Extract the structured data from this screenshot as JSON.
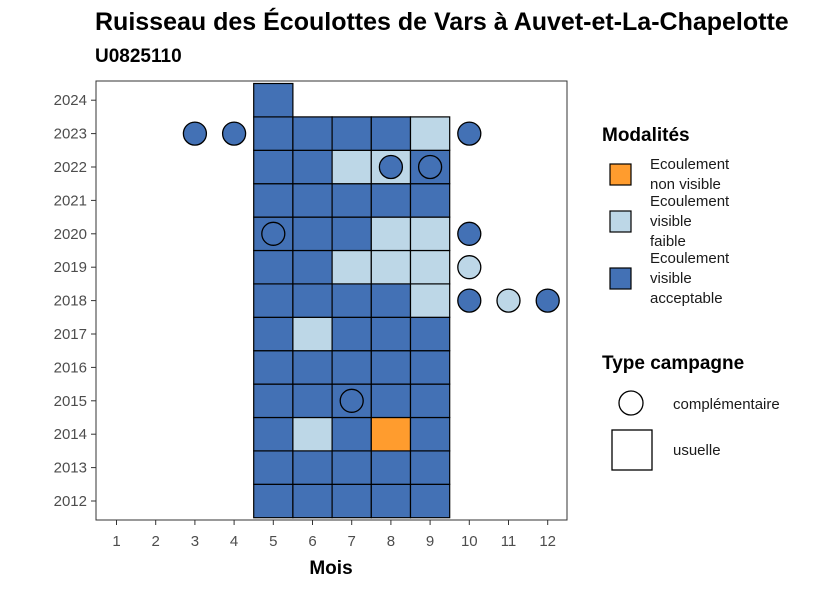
{
  "chart_data": {
    "type": "heatmap",
    "title": "Ruisseau des Écoulottes de Vars à Auvet-et-La-Chapelotte",
    "subtitle": "U0825110",
    "xlabel": "Mois",
    "ylabel": "",
    "x_ticks": [
      1,
      2,
      3,
      4,
      5,
      6,
      7,
      8,
      9,
      10,
      11,
      12
    ],
    "y_ticks": [
      2012,
      2013,
      2014,
      2015,
      2016,
      2017,
      2018,
      2019,
      2020,
      2021,
      2022,
      2023,
      2024
    ],
    "xlim": [
      0.5,
      12.5
    ],
    "ylim": [
      2011.45,
      2024.6
    ],
    "colors": {
      "non_visible": "#ff9c2e",
      "faible": "#bdd7e7",
      "acceptable": "#4371b5"
    },
    "legend": {
      "modalites_title": "Modalités",
      "modalites": [
        {
          "key": "non_visible",
          "lines": [
            "Ecoulement",
            "non visible"
          ]
        },
        {
          "key": "faible",
          "lines": [
            "Ecoulement",
            "visible",
            "faible"
          ]
        },
        {
          "key": "acceptable",
          "lines": [
            "Ecoulement",
            "visible",
            "acceptable"
          ]
        }
      ],
      "campagne_title": "Type campagne",
      "campagnes": [
        {
          "key": "complementaire",
          "label": "complémentaire"
        },
        {
          "key": "usuelle",
          "label": "usuelle"
        }
      ]
    },
    "usuelle": [
      {
        "year": 2012,
        "values": {
          "5": "acceptable",
          "6": "acceptable",
          "7": "acceptable",
          "8": "acceptable",
          "9": "acceptable"
        }
      },
      {
        "year": 2013,
        "values": {
          "5": "acceptable",
          "6": "acceptable",
          "7": "acceptable",
          "8": "acceptable",
          "9": "acceptable"
        }
      },
      {
        "year": 2014,
        "values": {
          "5": "acceptable",
          "6": "faible",
          "7": "acceptable",
          "8": "non_visible",
          "9": "acceptable"
        }
      },
      {
        "year": 2015,
        "values": {
          "5": "acceptable",
          "6": "acceptable",
          "7": "acceptable",
          "8": "acceptable",
          "9": "acceptable"
        }
      },
      {
        "year": 2016,
        "values": {
          "5": "acceptable",
          "6": "acceptable",
          "7": "acceptable",
          "8": "acceptable",
          "9": "acceptable"
        }
      },
      {
        "year": 2017,
        "values": {
          "5": "acceptable",
          "6": "faible",
          "7": "acceptable",
          "8": "acceptable",
          "9": "acceptable"
        }
      },
      {
        "year": 2018,
        "values": {
          "5": "acceptable",
          "6": "acceptable",
          "7": "acceptable",
          "8": "acceptable",
          "9": "faible"
        }
      },
      {
        "year": 2019,
        "values": {
          "5": "acceptable",
          "6": "acceptable",
          "7": "faible",
          "8": "faible",
          "9": "faible"
        }
      },
      {
        "year": 2020,
        "values": {
          "5": "acceptable",
          "6": "acceptable",
          "7": "acceptable",
          "8": "faible",
          "9": "faible"
        }
      },
      {
        "year": 2021,
        "values": {
          "5": "acceptable",
          "6": "acceptable",
          "7": "acceptable",
          "8": "acceptable",
          "9": "acceptable"
        }
      },
      {
        "year": 2022,
        "values": {
          "5": "acceptable",
          "6": "acceptable",
          "7": "faible",
          "8": "faible",
          "9": "acceptable"
        }
      },
      {
        "year": 2023,
        "values": {
          "5": "acceptable",
          "6": "acceptable",
          "7": "acceptable",
          "8": "acceptable",
          "9": "faible"
        }
      },
      {
        "year": 2024,
        "values": {
          "5": "acceptable"
        }
      }
    ],
    "complementaire": [
      {
        "year": 2023,
        "month": 3,
        "value": "acceptable"
      },
      {
        "year": 2023,
        "month": 4,
        "value": "acceptable"
      },
      {
        "year": 2023,
        "month": 10,
        "value": "acceptable"
      },
      {
        "year": 2022,
        "month": 8,
        "value": "acceptable"
      },
      {
        "year": 2022,
        "month": 9,
        "value": "acceptable"
      },
      {
        "year": 2020,
        "month": 5,
        "value": "acceptable"
      },
      {
        "year": 2020,
        "month": 10,
        "value": "acceptable"
      },
      {
        "year": 2019,
        "month": 10,
        "value": "faible"
      },
      {
        "year": 2018,
        "month": 10,
        "value": "acceptable"
      },
      {
        "year": 2018,
        "month": 11,
        "value": "faible"
      },
      {
        "year": 2018,
        "month": 12,
        "value": "acceptable"
      },
      {
        "year": 2015,
        "month": 7,
        "value": "acceptable"
      }
    ]
  }
}
